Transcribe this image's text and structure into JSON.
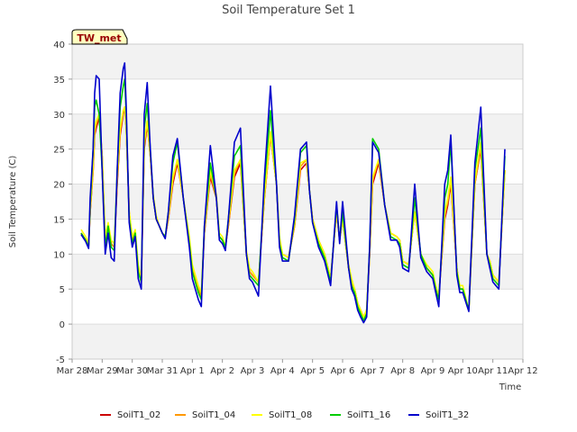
{
  "chart_data": {
    "type": "line",
    "title": "Soil Temperature Set 1",
    "xlabel": "Time",
    "ylabel": "Soil Temperature (C)",
    "ylim": [
      -5,
      40
    ],
    "yticks": [
      -5,
      0,
      5,
      10,
      15,
      20,
      25,
      30,
      35,
      40
    ],
    "xlim": [
      0,
      15
    ],
    "xtick_labels": [
      "Mar 28",
      "Mar 29",
      "Mar 30",
      "Mar 31",
      "Apr 1",
      "Apr 2",
      "Apr 3",
      "Apr 4",
      "Apr 5",
      "Apr 6",
      "Apr 7",
      "Apr 8",
      "Apr 9",
      "Apr 10",
      "Apr 11",
      "Apr 12"
    ],
    "x_unit": "days since Mar 28",
    "grid": true,
    "legend_position": "bottom",
    "badge": "TW_met",
    "colors": {
      "SoilT1_02": "#cc0000",
      "SoilT1_04": "#ff9900",
      "SoilT1_08": "#ffff00",
      "SoilT1_16": "#00cc00",
      "SoilT1_32": "#0000cc",
      "band": "#f2f2f2",
      "badge_bg": "#ffffc0"
    },
    "x": [
      0.3,
      0.45,
      0.55,
      0.6,
      0.7,
      0.75,
      0.8,
      0.9,
      1.0,
      1.1,
      1.2,
      1.3,
      1.4,
      1.5,
      1.6,
      1.7,
      1.75,
      1.8,
      1.9,
      2.0,
      2.1,
      2.2,
      2.3,
      2.4,
      2.5,
      2.6,
      2.7,
      2.8,
      2.9,
      3.0,
      3.1,
      3.2,
      3.35,
      3.5,
      3.7,
      3.9,
      4.0,
      4.2,
      4.3,
      4.4,
      4.6,
      4.8,
      4.9,
      5.0,
      5.1,
      5.2,
      5.4,
      5.6,
      5.8,
      5.9,
      6.0,
      6.2,
      6.4,
      6.6,
      6.8,
      6.9,
      7.0,
      7.2,
      7.4,
      7.6,
      7.8,
      7.9,
      8.0,
      8.2,
      8.4,
      8.6,
      8.8,
      8.9,
      9.0,
      9.2,
      9.3,
      9.4,
      9.5,
      9.6,
      9.7,
      9.8,
      9.9,
      10.0,
      10.2,
      10.4,
      10.6,
      10.8,
      10.9,
      11.0,
      11.2,
      11.4,
      11.6,
      11.8,
      12.0,
      12.1,
      12.2,
      12.4,
      12.5,
      12.6,
      12.8,
      12.9,
      13.0,
      13.2,
      13.4,
      13.6,
      13.8,
      13.9,
      14.0,
      14.2,
      14.4
    ],
    "series": [
      {
        "name": "SoilT1_02",
        "values": [
          13.0,
          12.0,
          11.2,
          16.0,
          22.0,
          27.0,
          28.0,
          29.5,
          24.0,
          12.0,
          14.0,
          11.5,
          11.0,
          20.0,
          27.0,
          30.0,
          31.0,
          28.0,
          16.0,
          12.0,
          13.0,
          8.0,
          6.0,
          25.0,
          28.5,
          24.0,
          18.0,
          15.0,
          14.0,
          13.0,
          12.5,
          15.0,
          20.0,
          23.0,
          18.0,
          12.0,
          8.0,
          5.0,
          4.0,
          13.0,
          21.0,
          18.0,
          12.5,
          12.0,
          11.0,
          14.0,
          21.0,
          23.0,
          10.0,
          7.5,
          7.0,
          6.0,
          18.0,
          27.0,
          20.0,
          12.0,
          10.0,
          9.5,
          14.0,
          22.0,
          23.0,
          19.0,
          15.0,
          12.0,
          10.0,
          6.5,
          16.0,
          12.0,
          15.0,
          8.0,
          6.0,
          5.0,
          3.0,
          2.0,
          1.0,
          2.0,
          10.0,
          20.0,
          23.0,
          17.0,
          13.0,
          12.5,
          12.0,
          9.0,
          8.5,
          16.0,
          10.0,
          8.0,
          7.0,
          5.0,
          4.0,
          15.0,
          17.0,
          20.0,
          8.0,
          5.0,
          5.0,
          2.0,
          20.0,
          25.0,
          10.0,
          9.0,
          7.0,
          6.0,
          22.0
        ]
      },
      {
        "name": "SoilT1_04",
        "values": [
          13.0,
          12.0,
          11.2,
          16.0,
          22.0,
          27.5,
          28.5,
          30.0,
          24.0,
          12.0,
          14.0,
          11.5,
          11.0,
          20.5,
          27.5,
          30.5,
          31.0,
          28.0,
          16.0,
          12.0,
          13.0,
          8.0,
          6.0,
          25.5,
          29.0,
          24.0,
          18.0,
          15.0,
          14.0,
          13.0,
          12.5,
          15.0,
          20.5,
          23.5,
          18.0,
          12.0,
          8.0,
          5.0,
          4.0,
          13.0,
          21.5,
          18.0,
          12.5,
          12.0,
          11.0,
          14.0,
          21.5,
          23.5,
          10.0,
          7.5,
          7.0,
          6.0,
          18.0,
          27.0,
          20.0,
          12.0,
          10.0,
          9.5,
          14.0,
          22.5,
          23.5,
          19.0,
          15.0,
          12.0,
          10.0,
          6.5,
          16.0,
          12.0,
          15.0,
          8.0,
          6.0,
          5.0,
          3.0,
          2.0,
          1.0,
          2.0,
          10.0,
          20.5,
          23.5,
          17.0,
          13.0,
          12.5,
          12.0,
          9.0,
          8.5,
          16.0,
          10.0,
          8.0,
          7.0,
          5.0,
          4.0,
          15.5,
          17.5,
          20.5,
          8.0,
          5.0,
          5.0,
          2.0,
          20.0,
          25.5,
          10.0,
          9.0,
          7.0,
          6.0,
          22.0
        ]
      },
      {
        "name": "SoilT1_08",
        "values": [
          13.5,
          12.5,
          11.5,
          16.5,
          23.0,
          28.0,
          29.0,
          30.0,
          24.0,
          12.5,
          14.5,
          12.0,
          11.5,
          21.0,
          28.0,
          30.5,
          31.0,
          28.0,
          16.0,
          12.5,
          13.5,
          8.5,
          6.5,
          26.0,
          29.0,
          24.0,
          18.5,
          15.5,
          14.0,
          13.0,
          12.5,
          15.5,
          21.0,
          23.5,
          18.0,
          12.5,
          8.5,
          5.5,
          4.5,
          13.5,
          22.0,
          18.5,
          13.0,
          12.5,
          11.0,
          14.5,
          22.0,
          23.5,
          10.5,
          8.0,
          7.5,
          6.0,
          18.5,
          27.5,
          20.0,
          12.5,
          10.0,
          9.5,
          14.5,
          23.0,
          23.5,
          19.0,
          15.0,
          12.0,
          10.0,
          6.5,
          16.0,
          12.0,
          15.0,
          8.5,
          6.5,
          5.0,
          3.0,
          2.0,
          1.0,
          2.0,
          10.5,
          21.0,
          23.5,
          17.0,
          13.0,
          12.5,
          12.0,
          9.0,
          8.5,
          16.0,
          10.0,
          8.5,
          7.5,
          5.5,
          4.0,
          16.0,
          18.0,
          21.0,
          8.0,
          5.5,
          5.5,
          2.0,
          20.5,
          26.0,
          10.0,
          9.0,
          7.0,
          6.0,
          22.0
        ]
      },
      {
        "name": "SoilT1_16",
        "values": [
          13.0,
          12.0,
          11.0,
          17.0,
          25.0,
          31.0,
          32.0,
          30.0,
          22.0,
          11.0,
          14.0,
          11.0,
          10.5,
          22.0,
          31.0,
          34.0,
          35.0,
          30.0,
          15.0,
          11.5,
          13.0,
          7.5,
          6.0,
          28.0,
          31.5,
          25.0,
          18.0,
          15.0,
          14.0,
          13.0,
          12.5,
          16.0,
          23.0,
          26.0,
          18.0,
          11.5,
          7.5,
          4.5,
          3.5,
          14.0,
          23.0,
          18.0,
          12.5,
          12.0,
          11.0,
          15.0,
          24.0,
          25.5,
          10.0,
          7.0,
          6.5,
          5.5,
          20.0,
          30.5,
          20.0,
          11.5,
          9.5,
          9.0,
          15.0,
          24.5,
          25.5,
          19.0,
          14.5,
          11.5,
          9.5,
          6.0,
          17.0,
          12.0,
          16.0,
          8.0,
          5.5,
          4.5,
          2.5,
          1.5,
          0.5,
          1.5,
          11.0,
          26.5,
          25.0,
          17.0,
          12.5,
          12.0,
          11.5,
          8.5,
          8.0,
          18.0,
          10.0,
          8.0,
          7.0,
          5.0,
          3.5,
          18.0,
          20.0,
          26.0,
          7.5,
          5.0,
          5.0,
          2.0,
          22.0,
          28.0,
          10.0,
          8.5,
          6.5,
          5.5,
          24.0
        ]
      },
      {
        "name": "SoilT1_32",
        "values": [
          12.8,
          11.8,
          10.8,
          18.0,
          25.0,
          33.0,
          35.5,
          35.0,
          22.0,
          10.0,
          13.0,
          9.5,
          9.0,
          22.0,
          33.0,
          36.5,
          37.3,
          31.0,
          14.5,
          11.0,
          12.5,
          6.5,
          5.0,
          30.0,
          34.5,
          25.0,
          18.0,
          15.0,
          14.0,
          13.0,
          12.2,
          16.0,
          24.0,
          26.5,
          18.0,
          11.0,
          6.5,
          3.5,
          2.5,
          14.0,
          25.5,
          18.0,
          12.0,
          11.5,
          10.5,
          15.0,
          26.0,
          28.0,
          10.0,
          6.5,
          6.0,
          4.0,
          21.0,
          34.0,
          20.0,
          11.0,
          9.0,
          9.0,
          15.5,
          25.0,
          26.0,
          19.0,
          14.5,
          11.0,
          9.0,
          5.5,
          17.5,
          11.5,
          17.5,
          8.0,
          5.0,
          4.0,
          2.0,
          1.0,
          0.2,
          1.0,
          11.0,
          26.0,
          24.5,
          17.0,
          12.0,
          12.0,
          11.0,
          8.0,
          7.5,
          20.0,
          9.5,
          7.5,
          6.5,
          4.5,
          2.5,
          20.0,
          22.0,
          27.0,
          7.0,
          4.5,
          4.5,
          1.8,
          23.0,
          31.0,
          10.0,
          8.0,
          6.0,
          5.0,
          25.0
        ]
      }
    ]
  }
}
